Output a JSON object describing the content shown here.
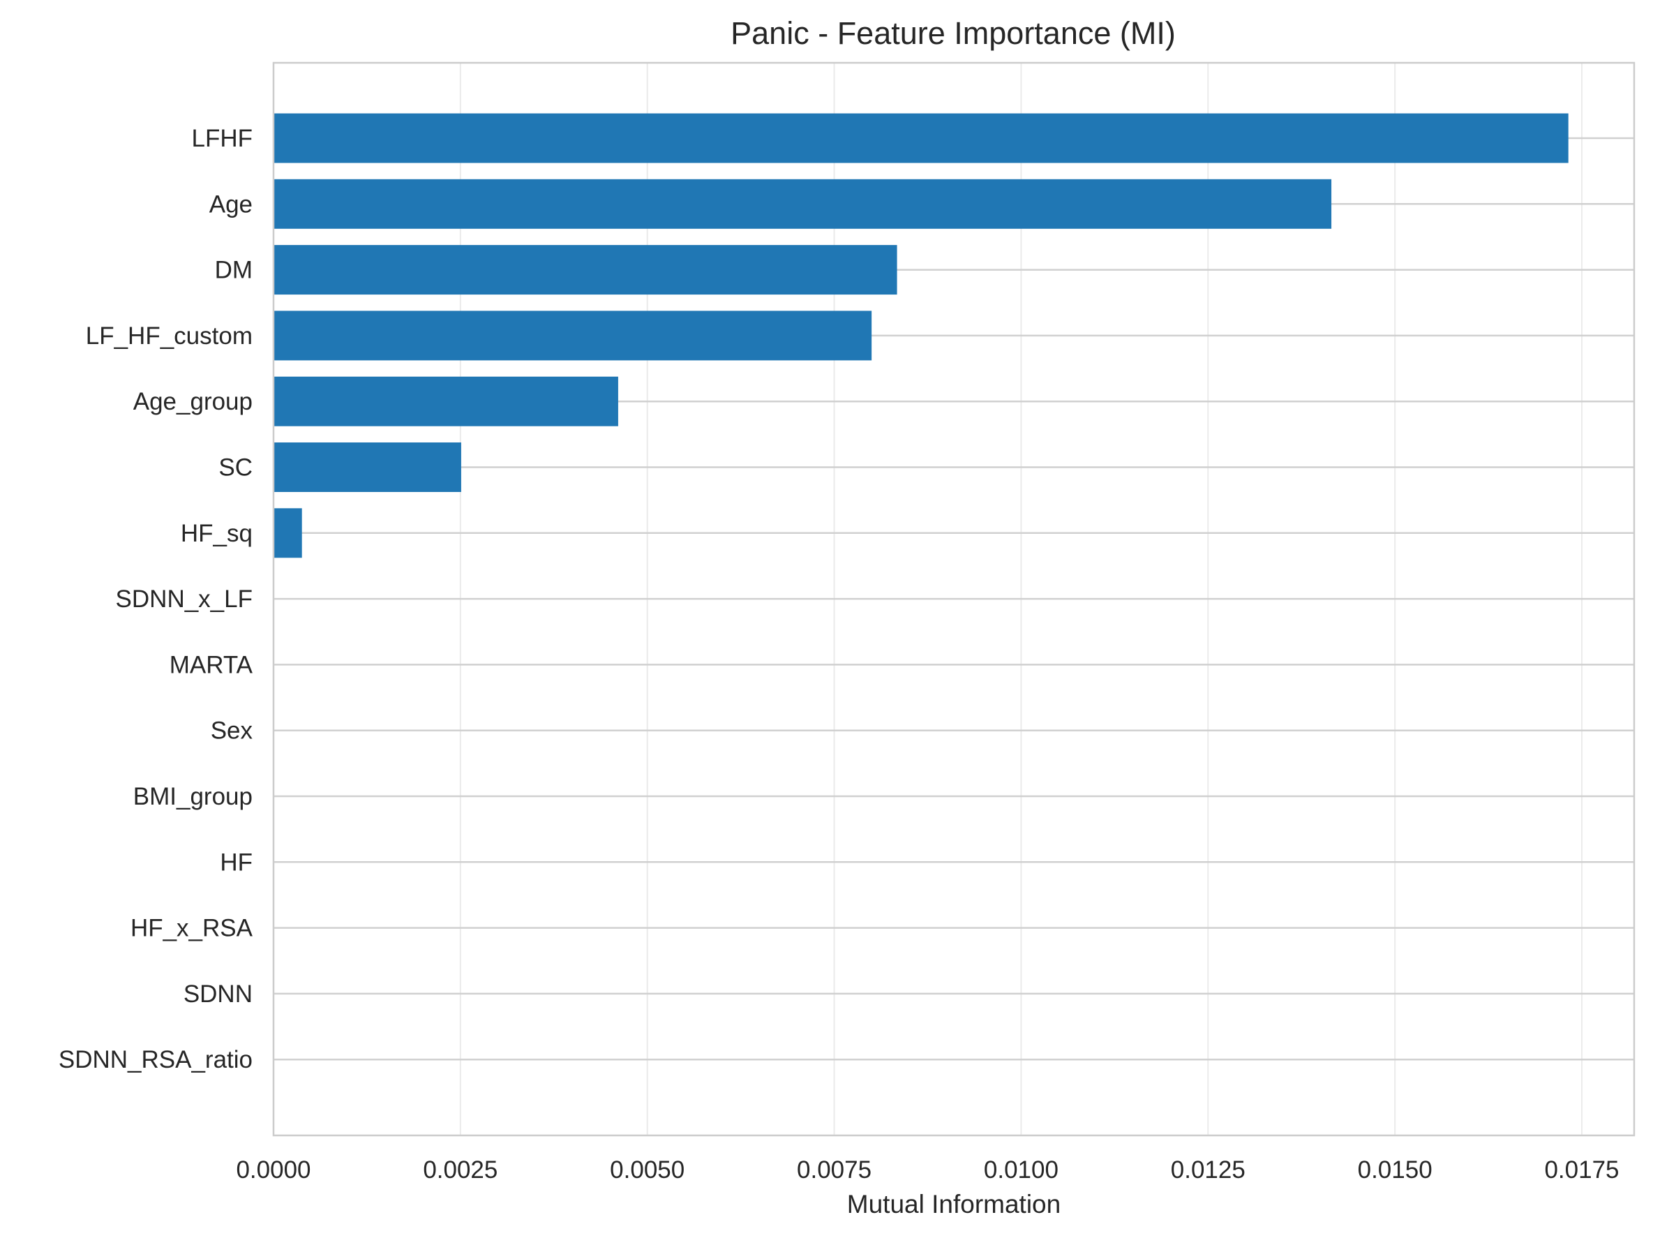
{
  "chart_data": {
    "type": "bar",
    "orientation": "horizontal",
    "title": "Panic - Feature Importance (MI)",
    "xlabel": "Mutual Information",
    "ylabel": "",
    "xlim": [
      0,
      0.0182
    ],
    "x_ticks": [
      "0.0000",
      "0.0025",
      "0.0050",
      "0.0075",
      "0.0100",
      "0.0125",
      "0.0150",
      "0.0175"
    ],
    "grid": true,
    "categories": [
      "LFHF",
      "Age",
      "DM",
      "LF_HF_custom",
      "Age_group",
      "SC",
      "HF_sq",
      "SDNN_x_LF",
      "MARTA",
      "Sex",
      "BMI_group",
      "HF",
      "HF_x_RSA",
      "SDNN",
      "SDNN_RSA_ratio"
    ],
    "values": [
      0.01732,
      0.01415,
      0.00834,
      0.008,
      0.00461,
      0.00251,
      0.00038,
      0,
      0,
      0,
      0,
      0,
      0,
      0,
      0
    ],
    "bar_color": "#2077b4"
  }
}
